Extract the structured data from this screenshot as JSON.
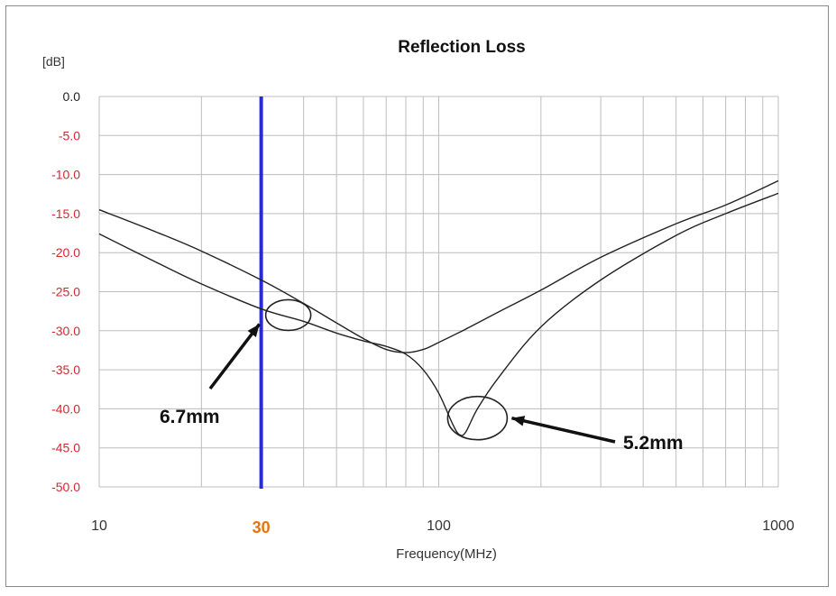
{
  "chart_data": {
    "type": "line",
    "title": "Reflection Loss",
    "ylabel": "[dB]",
    "xlabel": "Frequency(MHz)",
    "x_scale": "log",
    "xlim": [
      10,
      1000
    ],
    "ylim": [
      -50,
      0
    ],
    "grid": true,
    "y_ticks": [
      "0.0",
      "-5.0",
      "-10.0",
      "-15.0",
      "-20.0",
      "-25.0",
      "-30.0",
      "-35.0",
      "-40.0",
      "-45.0",
      "-50.0"
    ],
    "x_ticks": [
      {
        "value": 10,
        "label": "10"
      },
      {
        "value": 100,
        "label": "100"
      },
      {
        "value": 1000,
        "label": "1000"
      }
    ],
    "highlight_x": {
      "value": 30,
      "label": "30",
      "color": "#2b2bd6",
      "label_color": "#e8730c"
    },
    "series": [
      {
        "x": [
          10,
          15,
          20,
          30,
          40,
          50,
          60,
          70,
          80,
          90,
          100,
          120,
          150,
          200,
          300,
          500,
          700,
          1000
        ],
        "y": [
          -14.5,
          -17.5,
          -19.8,
          -23.5,
          -26.5,
          -29.0,
          -31.0,
          -32.4,
          -32.8,
          -32.4,
          -31.5,
          -29.8,
          -27.6,
          -24.8,
          -20.6,
          -16.3,
          -13.9,
          -10.8
        ]
      },
      {
        "x": [
          10,
          15,
          20,
          30,
          40,
          50,
          60,
          70,
          80,
          90,
          100,
          110,
          115,
          120,
          130,
          150,
          200,
          300,
          500,
          700,
          1000
        ],
        "y": [
          -17.6,
          -21.4,
          -24.0,
          -27.2,
          -28.8,
          -30.3,
          -31.3,
          -32.0,
          -33.0,
          -35.0,
          -38.0,
          -42.0,
          -43.3,
          -43.0,
          -40.0,
          -36.0,
          -29.5,
          -23.5,
          -17.8,
          -15.0,
          -12.4
        ]
      }
    ],
    "annotations": [
      {
        "label": "6.7mm",
        "x": 30,
        "y": -28.0
      },
      {
        "label": "5.2mm",
        "x": 130,
        "y": -40.5
      }
    ],
    "colors": {
      "ytick": "#d9262e",
      "curve": "#222222",
      "grid": "#bdbdbd"
    }
  }
}
